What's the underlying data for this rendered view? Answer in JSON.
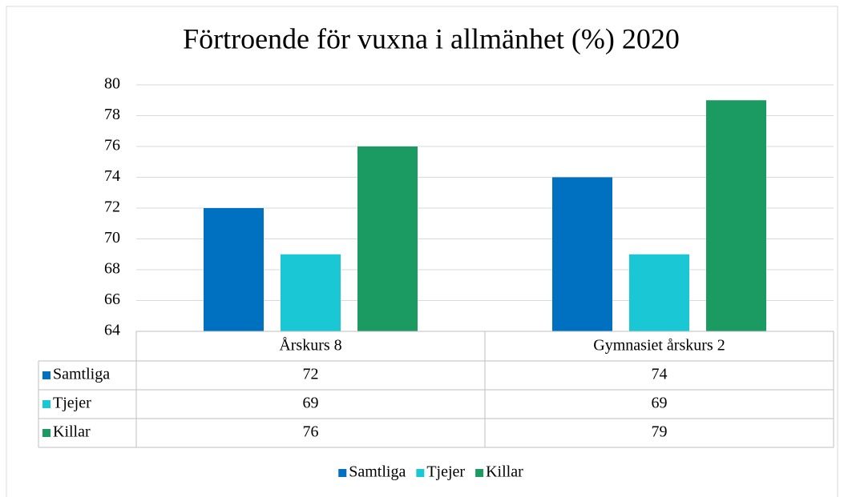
{
  "chart_data": {
    "type": "bar",
    "title": "Förtroende för vuxna i allmänhet (%) 2020",
    "categories": [
      "Årskurs 8",
      "Gymnasiet årskurs 2"
    ],
    "series": [
      {
        "name": "Samtliga",
        "color": "#0070c0",
        "values": [
          72,
          74
        ]
      },
      {
        "name": "Tjejer",
        "color": "#19c8d4",
        "values": [
          69,
          69
        ]
      },
      {
        "name": "Killar",
        "color": "#1b9a62",
        "values": [
          76,
          79
        ]
      }
    ],
    "ylim": [
      64,
      80
    ],
    "yticks": [
      64,
      66,
      68,
      70,
      72,
      74,
      76,
      78,
      80
    ],
    "grid": true,
    "data_table": true,
    "legend": "bottom"
  }
}
